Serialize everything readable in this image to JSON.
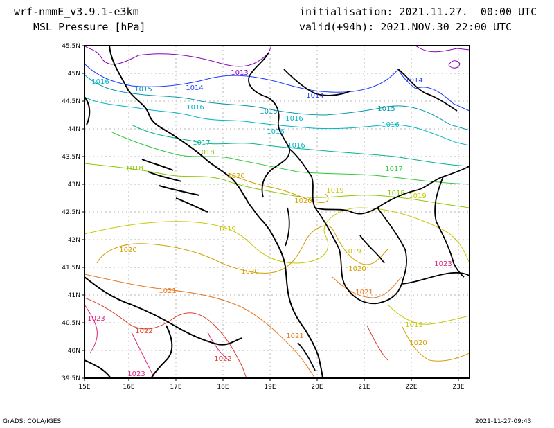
{
  "header": {
    "model": "wrf-nmmE_v3.9.1-e3km",
    "field": "MSL Pressure [hPa]",
    "init": "initialisation: 2021.11.27.  00:00 UTC",
    "valid": "valid(+94h): 2021.NOV.30 22:00 UTC"
  },
  "footer": {
    "left": "GrADS: COLA/IGES",
    "right": "2021-11-27-09:43"
  },
  "axes": {
    "lat_labels": [
      "45.5N",
      "45N",
      "44.5N",
      "44N",
      "43.5N",
      "43N",
      "42.5N",
      "42N",
      "41.5N",
      "41N",
      "40.5N",
      "40N",
      "39.5N"
    ],
    "lon_labels": [
      "15E",
      "16E",
      "17E",
      "18E",
      "19E",
      "20E",
      "21E",
      "22E",
      "23E"
    ]
  },
  "isobar_labels": [
    {
      "t": "1013",
      "c": "#8a00b8"
    },
    {
      "t": "1014",
      "c": "#1e3cff"
    },
    {
      "t": "1014",
      "c": "#1e3cff"
    },
    {
      "t": "1014",
      "c": "#1e3cff"
    },
    {
      "t": "1015",
      "c": "#0099aa"
    },
    {
      "t": "1015",
      "c": "#0099aa"
    },
    {
      "t": "1015",
      "c": "#0099aa"
    },
    {
      "t": "1016",
      "c": "#00b4c8"
    },
    {
      "t": "1016",
      "c": "#00b4c8"
    },
    {
      "t": "1016",
      "c": "#00b4c8"
    },
    {
      "t": "1016",
      "c": "#00b4c8"
    },
    {
      "t": "1016",
      "c": "#00b4c8"
    },
    {
      "t": "1016",
      "c": "#00b4c8"
    },
    {
      "t": "1017",
      "c": "#00b48c"
    },
    {
      "t": "1017",
      "c": "#32c83c"
    },
    {
      "t": "1018",
      "c": "#8cc800"
    },
    {
      "t": "1018",
      "c": "#8cc800"
    },
    {
      "t": "1018",
      "c": "#8cc800"
    },
    {
      "t": "1019",
      "c": "#c8c800"
    },
    {
      "t": "1019",
      "c": "#c8c800"
    },
    {
      "t": "1019",
      "c": "#c8c800"
    },
    {
      "t": "1019",
      "c": "#c8c800"
    },
    {
      "t": "1019",
      "c": "#c8c800"
    },
    {
      "t": "1020",
      "c": "#d2a000"
    },
    {
      "t": "1020",
      "c": "#d2a000"
    },
    {
      "t": "1020",
      "c": "#d2a000"
    },
    {
      "t": "1020",
      "c": "#d2a000"
    },
    {
      "t": "1020",
      "c": "#d2a000"
    },
    {
      "t": "1020",
      "c": "#d2a000"
    },
    {
      "t": "1021",
      "c": "#e6781e"
    },
    {
      "t": "1021",
      "c": "#e6781e"
    },
    {
      "t": "1021",
      "c": "#e6781e"
    },
    {
      "t": "1022",
      "c": "#dc3c28"
    },
    {
      "t": "1022",
      "c": "#dc3c28"
    },
    {
      "t": "1023",
      "c": "#dc1e78"
    },
    {
      "t": "1023",
      "c": "#dc1e78"
    },
    {
      "t": "1023",
      "c": "#dc1e78"
    }
  ]
}
